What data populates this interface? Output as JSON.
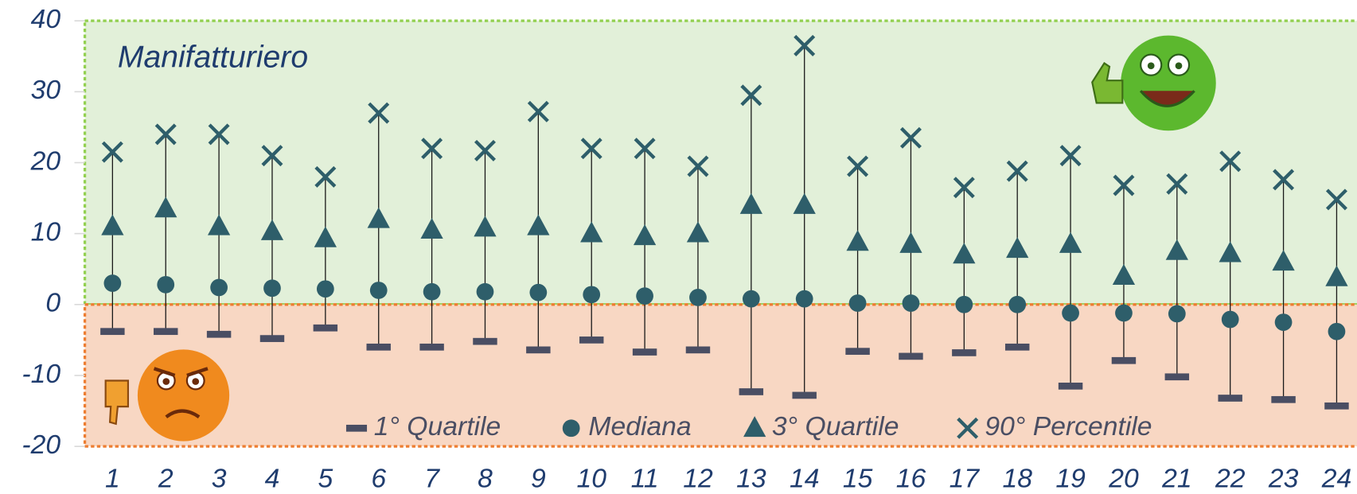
{
  "chart_data": {
    "type": "quantile-range",
    "annotation": "Manifatturiero",
    "categories": [
      "1",
      "2",
      "3",
      "4",
      "5",
      "6",
      "7",
      "8",
      "9",
      "10",
      "11",
      "12",
      "13",
      "14",
      "15",
      "16",
      "17",
      "18",
      "19",
      "20",
      "21",
      "22",
      "23",
      "24"
    ],
    "series": [
      {
        "name": "1° Quartile",
        "color": "#4a4e63",
        "values": [
          -3.8,
          -3.8,
          -4.2,
          -4.8,
          -3.3,
          -6,
          -6,
          -5.2,
          -6.4,
          -5,
          -6.7,
          -6.4,
          -12.3,
          -12.8,
          -6.6,
          -7.3,
          -6.8,
          -6,
          -11.5,
          -7.9,
          -10.2,
          -13.2,
          -13.4,
          -14.3
        ]
      },
      {
        "name": "Mediana",
        "color": "#2e5e6a",
        "values": [
          3,
          2.8,
          2.4,
          2.3,
          2.2,
          2,
          1.8,
          1.8,
          1.7,
          1.4,
          1.2,
          1,
          0.8,
          0.8,
          0.2,
          0.2,
          0,
          0,
          -1.2,
          -1.2,
          -1.3,
          -2.1,
          -2.5,
          -3.8
        ]
      },
      {
        "name": "3° Quartile",
        "color": "#2e5e6a",
        "values": [
          11,
          13.5,
          11,
          10.3,
          9.3,
          12,
          10.5,
          10.8,
          11,
          10,
          9.6,
          10,
          14,
          14,
          8.8,
          8.5,
          7,
          7.8,
          8.5,
          4,
          7.5,
          7.2,
          6,
          3.8
        ]
      },
      {
        "name": "90° Percentile",
        "color": "#2e5e6a",
        "values": [
          21.5,
          24,
          24,
          21,
          18,
          27,
          22,
          21.7,
          27.2,
          22,
          22,
          19.5,
          29.5,
          36.5,
          19.5,
          23.5,
          16.5,
          18.8,
          21,
          16.8,
          17,
          20.2,
          17.6,
          14.8
        ]
      }
    ],
    "ylim": [
      -20,
      40
    ],
    "yticks": [
      -20,
      -10,
      0,
      10,
      20,
      30,
      40
    ]
  }
}
